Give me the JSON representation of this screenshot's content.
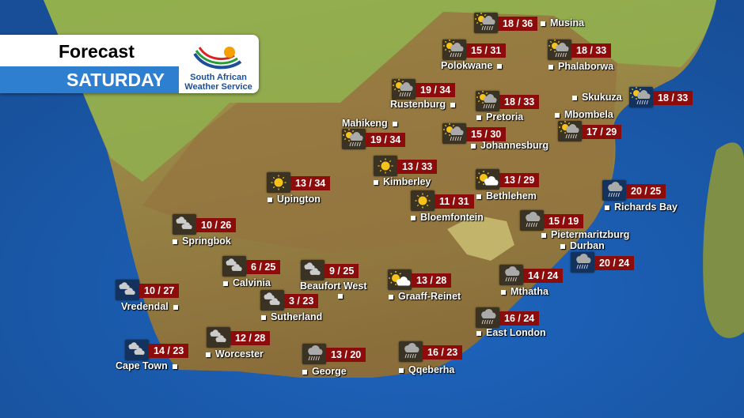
{
  "header": {
    "title": "Forecast",
    "day": "SATURDAY"
  },
  "logo": {
    "line1": "South African",
    "line2": "Weather Service"
  },
  "colors": {
    "ocean": "#1c5fb0",
    "temp_box": "#8c0c0c",
    "day_banner": "#2f7fd0"
  },
  "stations": [
    {
      "name": "Musina",
      "temp": "18 / 36",
      "icon": "thunder-showers-icon"
    },
    {
      "name": "Polokwane",
      "temp": "15 / 31",
      "icon": "thunder-showers-icon"
    },
    {
      "name": "Phalaborwa",
      "temp": "18 / 33",
      "icon": "thunder-showers-icon"
    },
    {
      "name": "Rustenburg",
      "temp": "19 / 34",
      "icon": "thunder-showers-icon"
    },
    {
      "name": "Pretoria",
      "temp": "18 / 33",
      "icon": "thunder-showers-icon"
    },
    {
      "name": "Skukuza",
      "temp": "18 / 33",
      "icon": "thunder-showers-icon"
    },
    {
      "name": "Mbombela",
      "temp": "17 / 29",
      "icon": "thunder-showers-icon"
    },
    {
      "name": "Mahikeng",
      "temp": "19 / 34",
      "icon": "thunder-showers-icon"
    },
    {
      "name": "Johannesburg",
      "temp": "15 / 30",
      "icon": "thunder-showers-icon"
    },
    {
      "name": "Kimberley",
      "temp": "13 / 33",
      "icon": "sunny-icon"
    },
    {
      "name": "Upington",
      "temp": "13 / 34",
      "icon": "sunny-icon"
    },
    {
      "name": "Bethlehem",
      "temp": "13 / 29",
      "icon": "partly-cloudy-icon"
    },
    {
      "name": "Bloemfontein",
      "temp": "11 / 31",
      "icon": "sunny-icon"
    },
    {
      "name": "Richards Bay",
      "temp": "20 / 25",
      "icon": "rain-icon"
    },
    {
      "name": "Springbok",
      "temp": "10 / 26",
      "icon": "cloudy-icon"
    },
    {
      "name": "Pietermaritzburg",
      "temp": "15 / 19",
      "icon": "rain-icon"
    },
    {
      "name": "Durban",
      "temp": "20 / 24",
      "icon": "rain-icon"
    },
    {
      "name": "Calvinia",
      "temp": "6 / 25",
      "icon": "cloudy-icon"
    },
    {
      "name": "Beaufort West",
      "temp": "9 / 25",
      "icon": "cloudy-icon"
    },
    {
      "name": "Mthatha",
      "temp": "14 / 24",
      "icon": "rain-icon"
    },
    {
      "name": "Vredendal",
      "temp": "10 / 27",
      "icon": "cloudy-icon"
    },
    {
      "name": "Graaff-Reinet",
      "temp": "13 / 28",
      "icon": "partly-cloudy-icon"
    },
    {
      "name": "Sutherland",
      "temp": "3 / 23",
      "icon": "cloudy-icon"
    },
    {
      "name": "East London",
      "temp": "16 / 24",
      "icon": "rain-icon"
    },
    {
      "name": "Worcester",
      "temp": "12 / 28",
      "icon": "cloudy-icon"
    },
    {
      "name": "Cape Town",
      "temp": "14 / 23",
      "icon": "cloudy-icon"
    },
    {
      "name": "George",
      "temp": "13 / 20",
      "icon": "rain-icon"
    },
    {
      "name": "Qqeberha",
      "temp": "16 / 23",
      "icon": "rain-icon"
    }
  ]
}
